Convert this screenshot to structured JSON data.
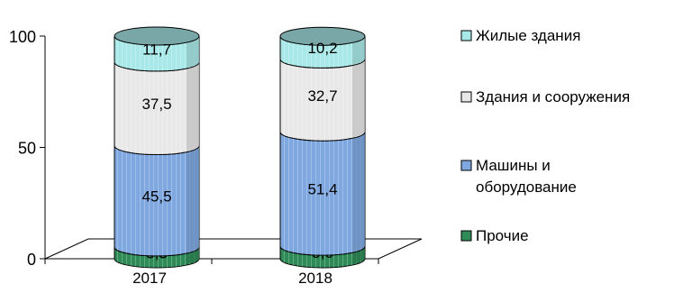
{
  "chart_data": {
    "type": "bar",
    "stacked": true,
    "categories": [
      "2017",
      "2018"
    ],
    "series": [
      {
        "name": "Прочие",
        "values": [
          5.3,
          5.6
        ],
        "labels": [
          "5,3",
          "5,6"
        ],
        "color": "#2E8B57"
      },
      {
        "name": "Машины и оборудование",
        "legend_lines": [
          "Машины и",
          "оборудование"
        ],
        "values": [
          45.5,
          51.4
        ],
        "labels": [
          "45,5",
          "51,4"
        ],
        "color": "#7FA8E0"
      },
      {
        "name": "Здания и сооружения",
        "values": [
          37.5,
          32.7
        ],
        "labels": [
          "37,5",
          "32,7"
        ],
        "color": "#E8E8E8"
      },
      {
        "name": "Жилые здания",
        "values": [
          11.7,
          10.2
        ],
        "labels": [
          "11,7",
          "10,2"
        ],
        "color": "#A8E8E8"
      }
    ],
    "yticks": [
      "0",
      "50",
      "100"
    ],
    "ylim": [
      0,
      100
    ],
    "grid": false,
    "legend_position": "right",
    "legend_order": [
      "Жилые здания",
      "Здания и сооружения",
      "Машины и оборудование",
      "Прочие"
    ]
  }
}
